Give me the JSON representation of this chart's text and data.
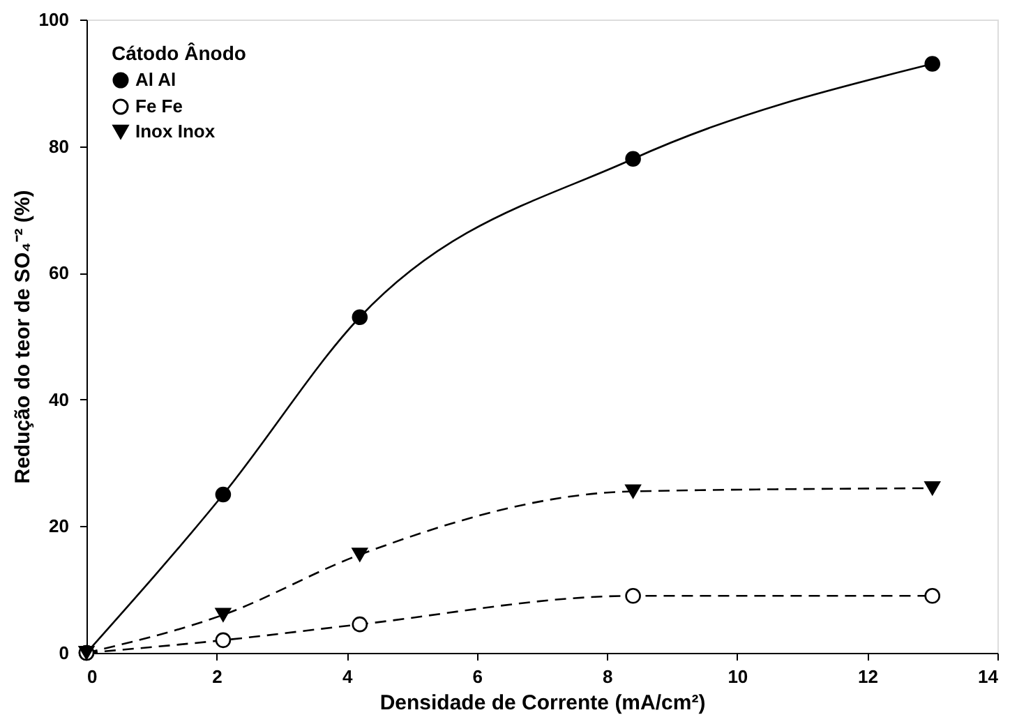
{
  "chart_data": {
    "type": "line",
    "xlabel": "Densidade de Corrente (mA/cm²)",
    "ylabel": "Redução do teor de SO₄⁻² (%)",
    "legend_title": "Cátodo Ânodo",
    "legend": "top left",
    "grid": false,
    "xlim": [
      0,
      14
    ],
    "xticks": [
      0,
      2,
      4,
      6,
      8,
      10,
      12,
      14
    ],
    "ylim": [
      0,
      100
    ],
    "yticks": [
      0,
      20,
      40,
      60,
      80,
      100
    ],
    "x": [
      0,
      2.1,
      4.2,
      8.4,
      13
    ],
    "series": [
      {
        "name": "Al Al",
        "color": "#000000",
        "marker": "circle",
        "line_style": "solid",
        "values": [
          0,
          25,
          53,
          78,
          93
        ]
      },
      {
        "name": "Fe Fe",
        "color": "#000000",
        "marker": "circle-open",
        "line_style": "dashed",
        "values": [
          0,
          2,
          4.5,
          9,
          9
        ]
      },
      {
        "name": "Inox Inox",
        "color": "#000000",
        "marker": "triangle-down",
        "line_style": "dashed",
        "values": [
          0,
          6,
          15.5,
          25.5,
          26
        ]
      }
    ]
  }
}
